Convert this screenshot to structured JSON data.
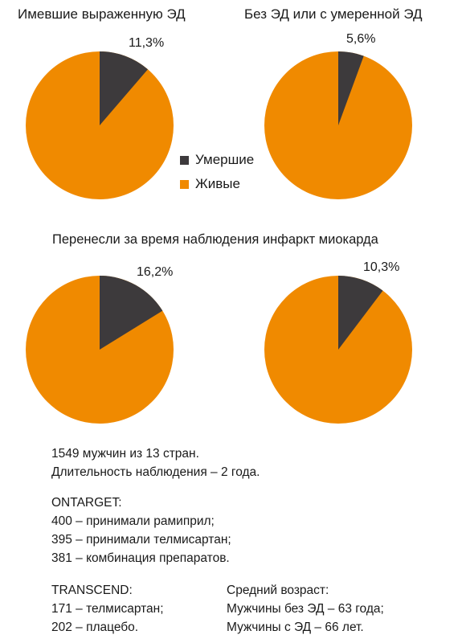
{
  "titles": {
    "left": "Имевшие выраженную ЭД",
    "right": "Без ЭД или с умеренной ЭД",
    "section": "Перенесли за время наблюдения инфаркт миокарда"
  },
  "legend": {
    "dead": "Умершие",
    "alive": "Живые"
  },
  "colors": {
    "dead": "#3d3a3c",
    "alive": "#f08a00"
  },
  "chart_data": [
    {
      "type": "pie",
      "labels": [
        "Умершие",
        "Живые"
      ],
      "values": [
        11.3,
        88.7
      ],
      "data_label": "11,3%"
    },
    {
      "type": "pie",
      "labels": [
        "Умершие",
        "Живые"
      ],
      "values": [
        5.6,
        94.4
      ],
      "data_label": "5,6%"
    },
    {
      "type": "pie",
      "labels": [
        "Умершие",
        "Живые"
      ],
      "values": [
        16.2,
        83.8
      ],
      "data_label": "16,2%"
    },
    {
      "type": "pie",
      "labels": [
        "Умершие",
        "Живые"
      ],
      "values": [
        10.3,
        89.7
      ],
      "data_label": "10,3%"
    }
  ],
  "info": {
    "line1": "1549 мужчин из 13 стран.",
    "line2": "Длительность наблюдения – 2 года.",
    "ontarget": {
      "title": "ONTARGET:",
      "l1": "400 – принимали рамиприл;",
      "l2": "395 – принимали телмисартан;",
      "l3": "381 – комбинация препаратов."
    },
    "transcend": {
      "title": "TRANSCEND:",
      "l1": "171 – телмисартан;",
      "l2": "202 – плацебо."
    },
    "age": {
      "title": "Средний возраст:",
      "l1": "Мужчины без ЭД – 63 года;",
      "l2": "Мужчины с ЭД – 66 лет."
    }
  }
}
